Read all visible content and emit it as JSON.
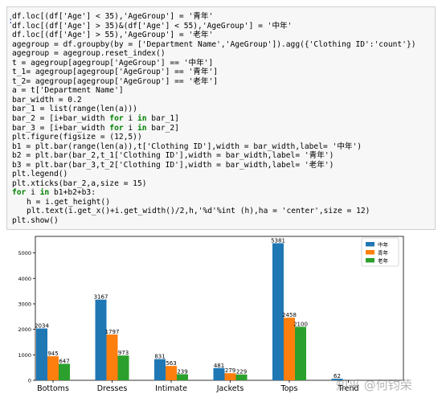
{
  "cell": {
    "prompt_mark": ":",
    "code_lines": [
      "df.loc[(df['Age'] < 35),'AgeGroup'] = '青年'",
      "df.loc[(df['Age'] > 35)&(df['Age'] < 55),'AgeGroup'] = '中年'",
      "df.loc[(df['Age'] > 55),'AgeGroup'] = '老年'",
      "agegroup = df.groupby(by = ['Department Name','AgeGroup']).agg({'Clothing ID':'count'})",
      "agegroup = agegroup.reset_index()",
      "t = agegroup[agegroup['AgeGroup'] == '中年']",
      "t_1= agegroup[agegroup['AgeGroup'] == '青年']",
      "t_2= agegroup[agegroup['AgeGroup'] == '老年']",
      "a = t['Department Name']",
      "bar_width = 0.2",
      "bar_1 = list(range(len(a)))",
      "bar_2 = [i+bar_width for i in bar_1]",
      "bar_3 = [i+bar_width for i in bar_2]",
      "plt.figure(figsize = (12,5))",
      "b1 = plt.bar(range(len(a)),t['Clothing ID'],width = bar_width,label= '中年')",
      "b2 = plt.bar(bar_2,t_1['Clothing ID'],width = bar_width,label= '青年')",
      "b3 = plt.bar(bar_3,t_2['Clothing ID'],width = bar_width,label= '老年')",
      "plt.legend()",
      "plt.xticks(bar_2,a,size = 15)",
      "for i in b1+b2+b3:",
      "    h = i.get_height()",
      "    plt.text(i.get_x()+i.get_width()/2,h,'%d'%int (h),ha = 'center',size = 12)",
      "plt.show()"
    ]
  },
  "watermark": "知乎 @何钧荣",
  "chart_data": {
    "type": "bar",
    "title": "",
    "xlabel": "",
    "ylabel": "",
    "categories": [
      "Bottoms",
      "Dresses",
      "Intimate",
      "Jackets",
      "Tops",
      "Trend"
    ],
    "series": [
      {
        "name": "中年",
        "color": "#1f77b4",
        "values": [
          2034,
          3167,
          831,
          481,
          5381,
          62
        ]
      },
      {
        "name": "青年",
        "color": "#ff7f0e",
        "values": [
          945,
          1797,
          563,
          279,
          2458,
          0
        ]
      },
      {
        "name": "老年",
        "color": "#2ca02c",
        "values": [
          647,
          973,
          239,
          229,
          2100,
          0
        ]
      }
    ],
    "value_labels": [
      [
        "2034",
        "3167",
        "831",
        "481",
        "5381",
        "62"
      ],
      [
        "945",
        "1797",
        "563",
        "279",
        "2458",
        ""
      ],
      [
        "647",
        "973",
        "239",
        "229",
        "2100",
        ""
      ]
    ],
    "yticks": [
      0,
      1000,
      2000,
      3000,
      4000,
      5000
    ],
    "ylim": [
      0,
      5650
    ],
    "legend_position": "top-right",
    "grid": false
  }
}
